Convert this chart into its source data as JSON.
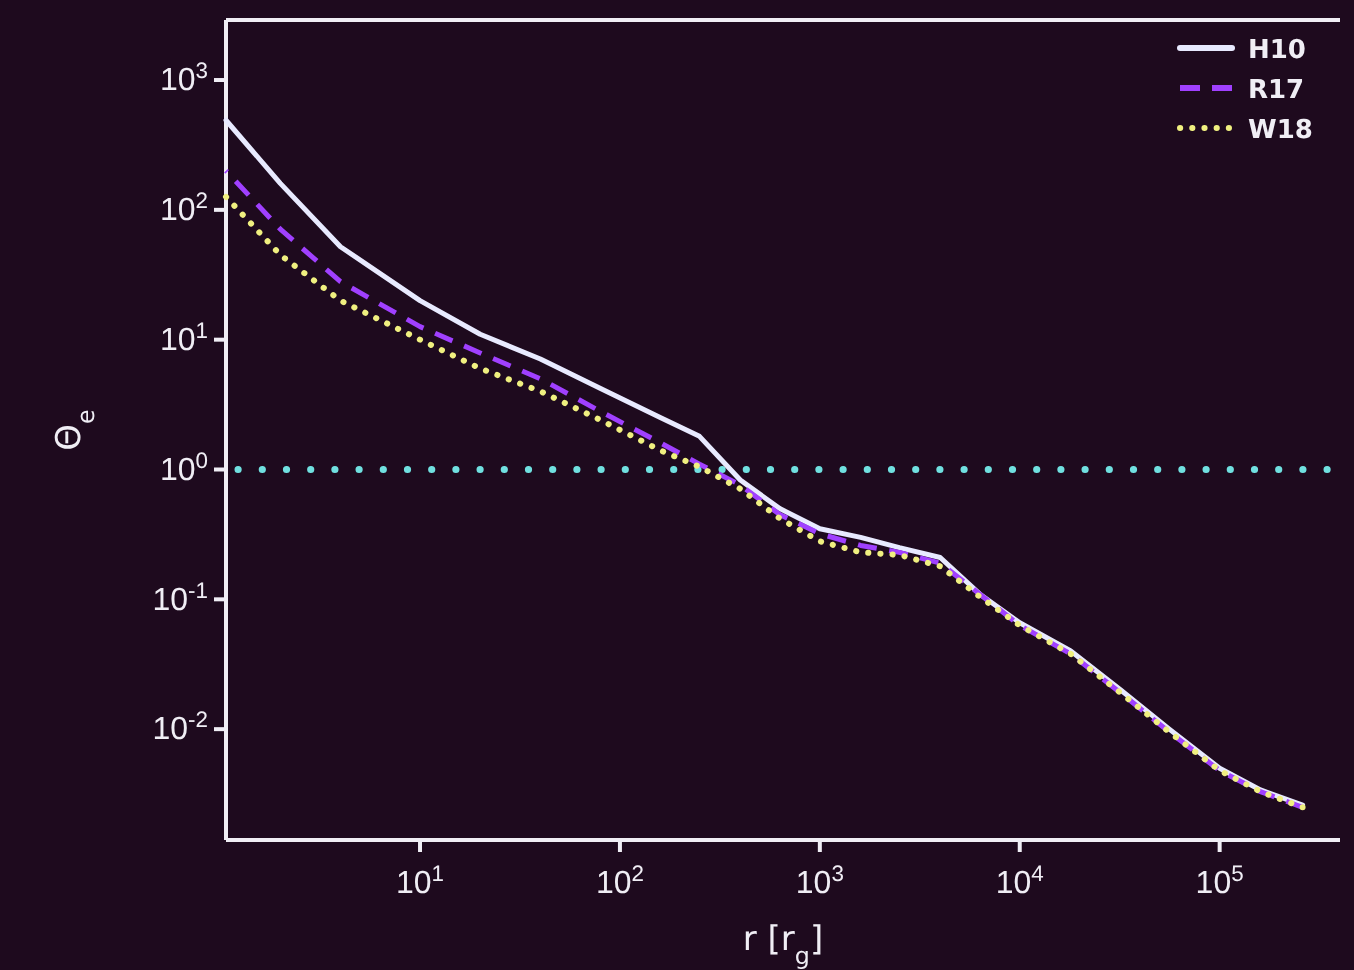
{
  "chart_data": {
    "type": "line",
    "xlabel": "r [r$_{g}$]",
    "ylabel": "Θ$_{e}$",
    "log": "xy",
    "legend": "top right",
    "grid": false,
    "x": [
      1.07,
      2,
      4,
      10,
      20,
      40,
      80,
      160,
      250,
      400,
      630,
      1000,
      1600,
      2500,
      4000,
      6300,
      10000,
      18000,
      32000,
      56000,
      100000,
      160000,
      260000
    ],
    "xlim": [
      1.07,
      400000
    ],
    "ylim": [
      0.0014,
      2900
    ],
    "xticks": [
      {
        "value": 10,
        "label": "10$^{1}$"
      },
      {
        "value": 100,
        "label": "10$^{2}$"
      },
      {
        "value": 1000,
        "label": "10$^{3}$"
      },
      {
        "value": 10000,
        "label": "10$^{4}$"
      },
      {
        "value": 100000,
        "label": "10$^{5}$"
      }
    ],
    "yticks": [
      {
        "value": 0.01,
        "label": "10$^{-2}$"
      },
      {
        "value": 0.1,
        "label": "10$^{-1}$"
      },
      {
        "value": 1,
        "label": "10$^{0}$"
      },
      {
        "value": 10,
        "label": "10$^{1}$"
      },
      {
        "value": 100,
        "label": "10$^{2}$"
      },
      {
        "value": 1000,
        "label": "10$^{3}$"
      }
    ],
    "series": [
      {
        "name": "H10",
        "color": "#e8eaff",
        "line_style": "solid",
        "values": [
          490,
          160,
          52,
          20,
          11,
          7.1,
          4.2,
          2.5,
          1.8,
          0.83,
          0.5,
          0.35,
          0.3,
          0.25,
          0.21,
          0.11,
          0.066,
          0.04,
          0.02,
          0.01,
          0.005,
          0.0034,
          0.0026
        ]
      },
      {
        "name": "R17",
        "color": "#a040ff",
        "line_style": "dashed",
        "values": [
          200,
          71,
          28,
          12.6,
          7.9,
          5,
          2.8,
          1.6,
          1.1,
          0.76,
          0.45,
          0.32,
          0.26,
          0.23,
          0.19,
          0.11,
          0.063,
          0.038,
          0.019,
          0.0095,
          0.0048,
          0.0033,
          0.0025
        ]
      },
      {
        "name": "W18",
        "color": "#f0f080",
        "line_style": "dotted",
        "values": [
          126,
          45,
          20,
          10,
          6,
          4,
          2.4,
          1.4,
          1.05,
          0.71,
          0.42,
          0.28,
          0.23,
          0.22,
          0.18,
          0.105,
          0.063,
          0.038,
          0.019,
          0.0095,
          0.0048,
          0.0033,
          0.0025
        ]
      }
    ],
    "ref_lines": [
      {
        "axis": "y",
        "value": 1,
        "color": "#70e0e0",
        "line_style": "dotted"
      }
    ]
  }
}
